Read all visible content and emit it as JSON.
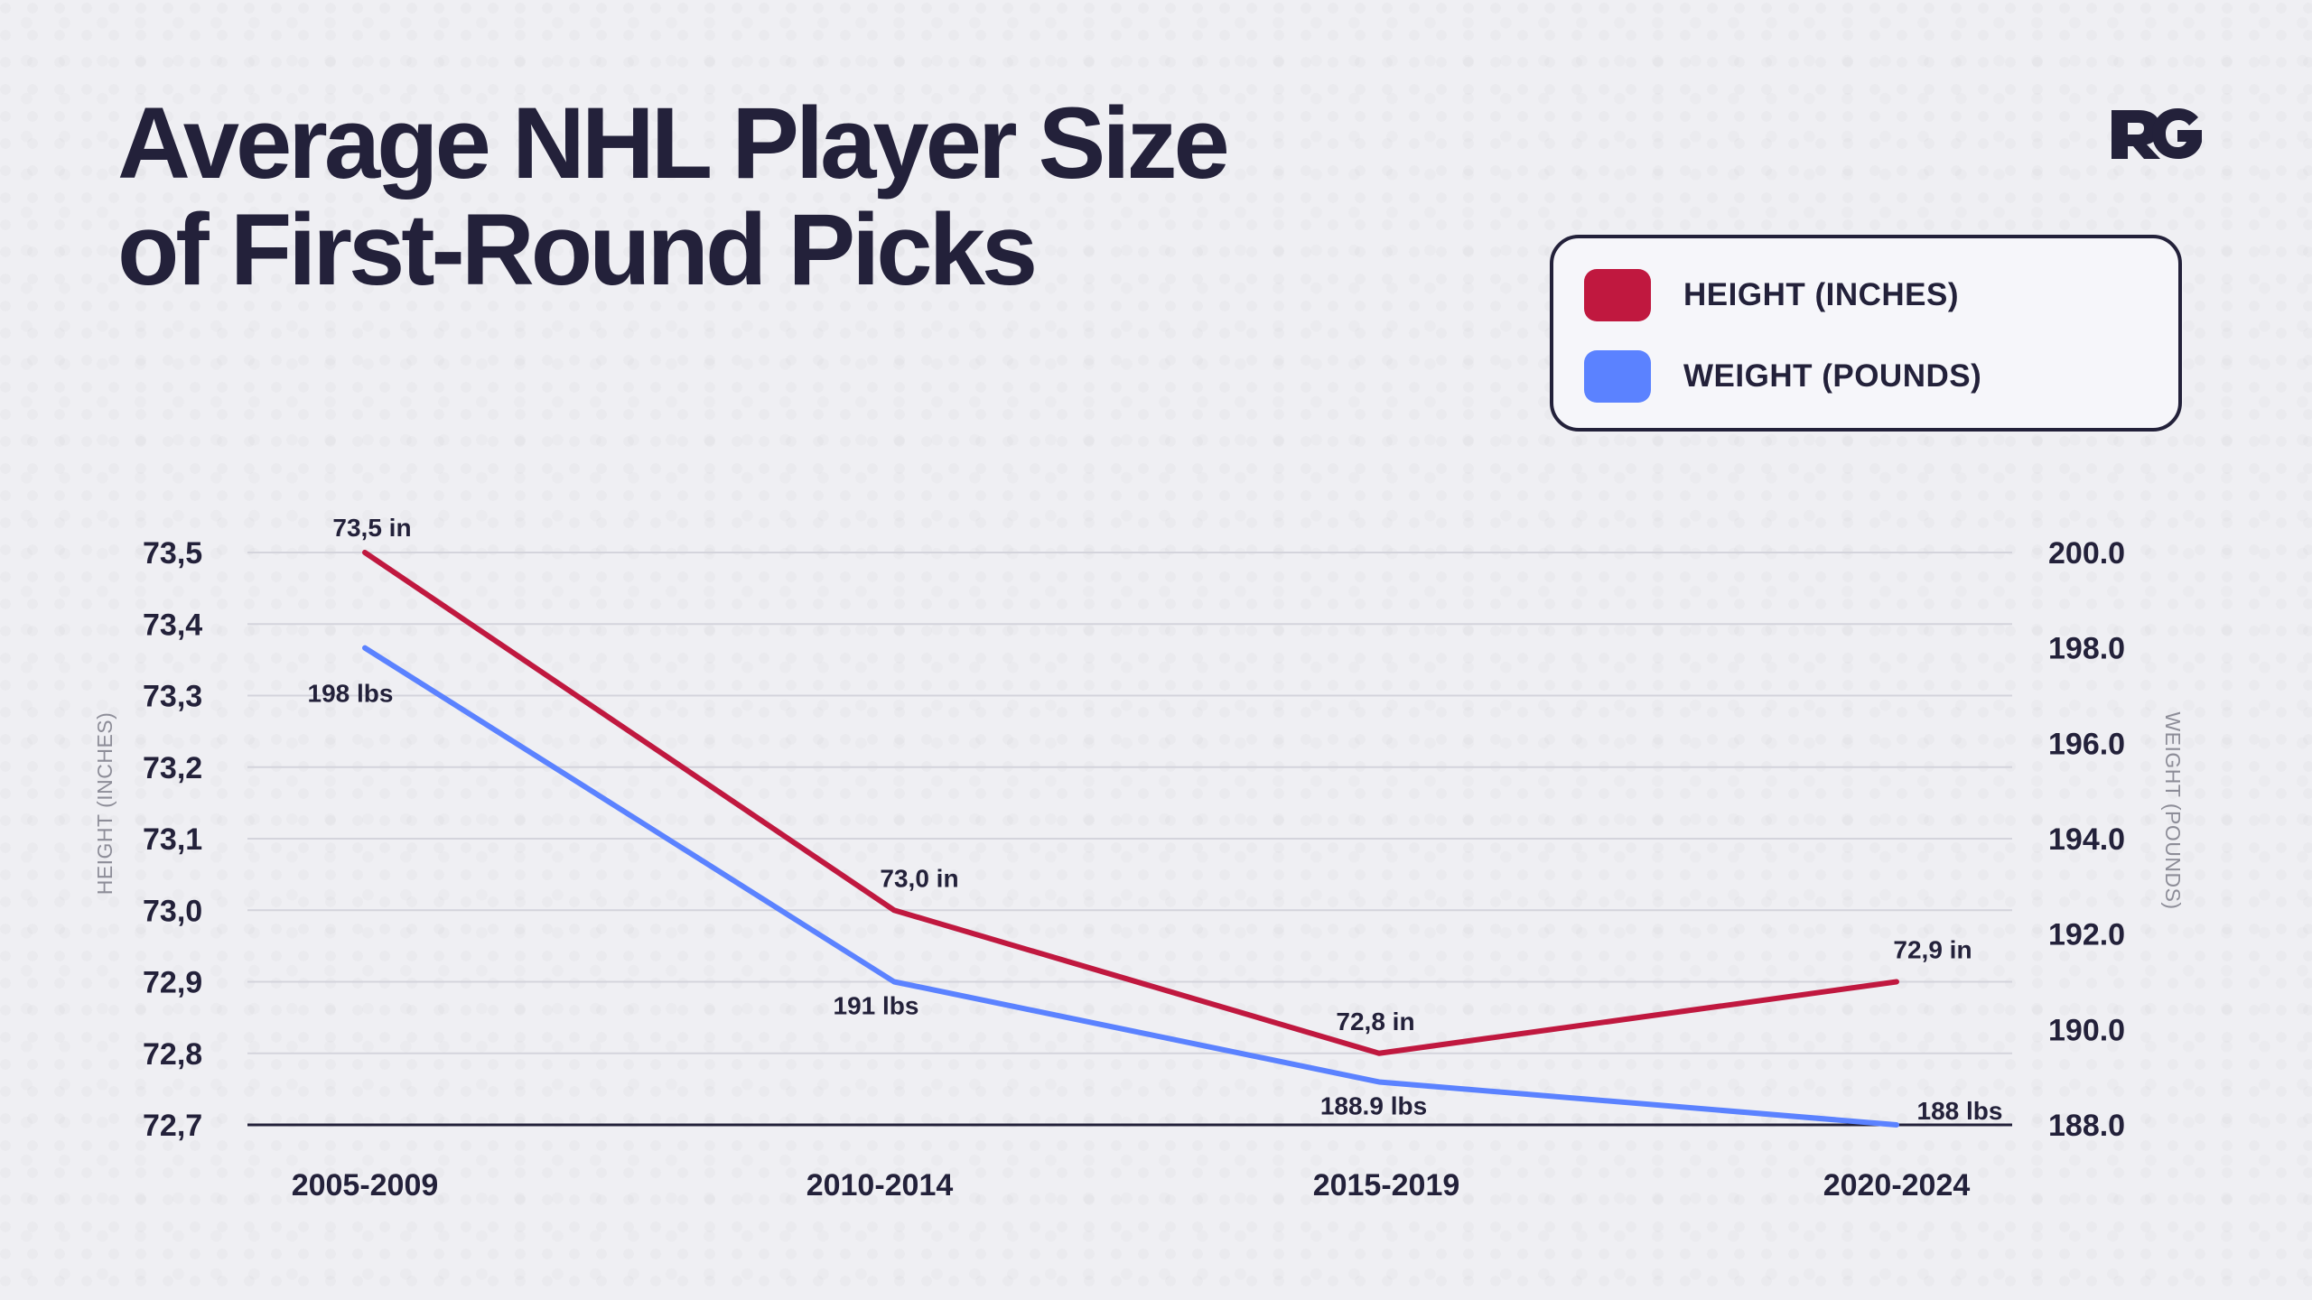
{
  "title": {
    "line1": "Average NHL Player Size",
    "line2": "of First-Round Picks"
  },
  "logo": {
    "text": "RG",
    "icon": "rg-logo"
  },
  "legend": {
    "items": [
      {
        "label": "HEIGHT (INCHES)",
        "color": "#c0183f",
        "icon": "red-square-icon"
      },
      {
        "label": "WEIGHT (POUNDS)",
        "color": "#5b82ff",
        "icon": "blue-square-icon"
      }
    ],
    "placement": "top-right"
  },
  "chart_data": {
    "type": "line",
    "categories": [
      "2005-2009",
      "2010-2014",
      "2015-2019",
      "2020-2024"
    ],
    "series": [
      {
        "name": "HEIGHT (INCHES)",
        "axis": "left",
        "values": [
          73.5,
          73.0,
          72.8,
          72.9
        ],
        "labels": [
          "73,5 in",
          "73,0 in",
          "72,8 in",
          "72,9 in"
        ],
        "color": "#c0183f"
      },
      {
        "name": "WEIGHT (POUNDS)",
        "axis": "right",
        "values": [
          198,
          191,
          188.9,
          188
        ],
        "labels": [
          "198 lbs",
          "191 lbs",
          "188.9 lbs",
          "188 lbs"
        ],
        "color": "#5b82ff"
      }
    ],
    "left_axis": {
      "title": "HEIGHT (INCHES)",
      "ticks": [
        "72,7",
        "72,8",
        "72,9",
        "73,0",
        "73,1",
        "73,2",
        "73,3",
        "73,4",
        "73,5"
      ],
      "tick_values": [
        72.7,
        72.8,
        72.9,
        73.0,
        73.1,
        73.2,
        73.3,
        73.4,
        73.5
      ],
      "range": [
        72.7,
        73.5
      ]
    },
    "right_axis": {
      "title": "WEIGHT (POUNDS)",
      "ticks": [
        "188.0",
        "190.0",
        "192.0",
        "194.0",
        "196.0",
        "198.0",
        "200.0"
      ],
      "tick_values": [
        188,
        190,
        192,
        194,
        196,
        198,
        200
      ],
      "range": [
        188,
        200
      ]
    },
    "grid": true
  }
}
